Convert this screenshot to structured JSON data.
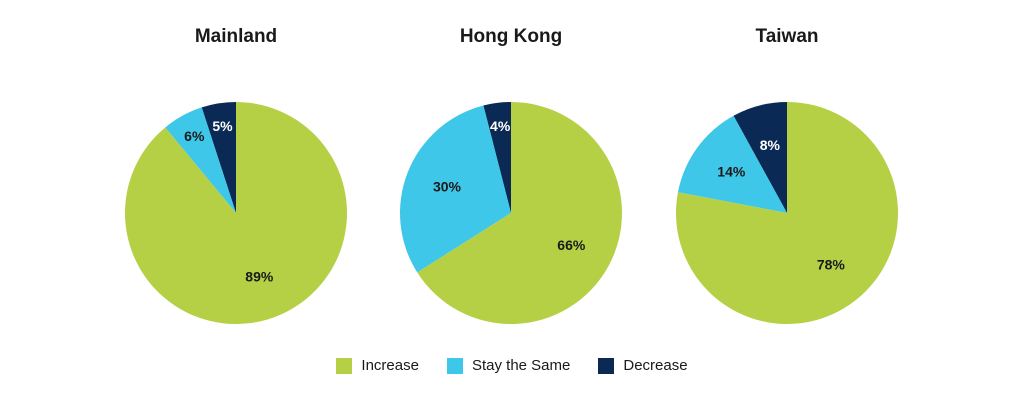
{
  "colors": {
    "increase": "#b5d044",
    "stay_the_same": "#3ec7e8",
    "decrease": "#0a2a55"
  },
  "legend": {
    "items": [
      {
        "label": "Increase",
        "color_key": "increase"
      },
      {
        "label": "Stay the Same",
        "color_key": "stay_the_same"
      },
      {
        "label": "Decrease",
        "color_key": "decrease"
      }
    ]
  },
  "chart_data": [
    {
      "type": "pie",
      "title": "Mainland",
      "slices": [
        {
          "name": "Increase",
          "value": 89,
          "label": "89%"
        },
        {
          "name": "Stay the Same",
          "value": 6,
          "label": "6%"
        },
        {
          "name": "Decrease",
          "value": 5,
          "label": "5%"
        }
      ]
    },
    {
      "type": "pie",
      "title": "Hong Kong",
      "slices": [
        {
          "name": "Increase",
          "value": 66,
          "label": "66%"
        },
        {
          "name": "Stay the Same",
          "value": 30,
          "label": "30%"
        },
        {
          "name": "Decrease",
          "value": 4,
          "label": "4%"
        }
      ]
    },
    {
      "type": "pie",
      "title": "Taiwan",
      "slices": [
        {
          "name": "Increase",
          "value": 78,
          "label": "78%"
        },
        {
          "name": "Stay the Same",
          "value": 14,
          "label": "14%"
        },
        {
          "name": "Decrease",
          "value": 8,
          "label": "8%"
        }
      ]
    }
  ]
}
